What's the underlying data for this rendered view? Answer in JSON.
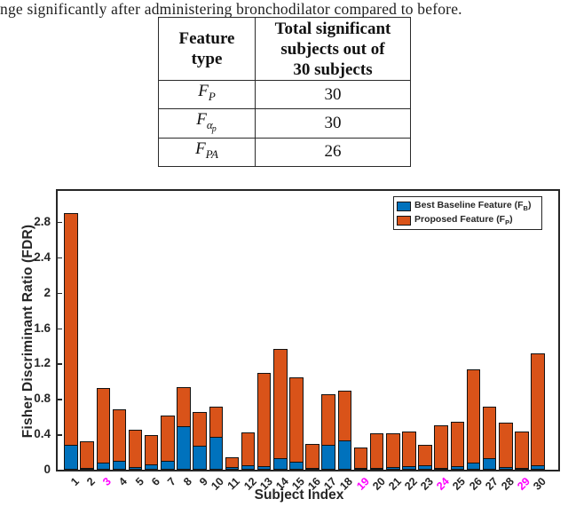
{
  "page": {
    "top_text": "nge significantly after administering bronchodilator compared to before."
  },
  "table": {
    "header_col1_lines": [
      "Feature",
      "type"
    ],
    "header_col2_lines": [
      "Total significant",
      "subjects out of",
      "30 subjects"
    ],
    "rows": [
      {
        "f": "F",
        "sub": "P",
        "subsub": "",
        "value": "30"
      },
      {
        "f": "F",
        "sub": "α",
        "subsub": "p",
        "value": "30"
      },
      {
        "f": "F",
        "sub": "PA",
        "subsub": "",
        "value": "26"
      }
    ]
  },
  "chart_data": {
    "type": "bar",
    "title": "",
    "xlabel": "Subject Index",
    "ylabel": "Fisher Discriminant Ratio (FDR)",
    "categories": [
      "1",
      "2",
      "3",
      "4",
      "5",
      "6",
      "7",
      "8",
      "9",
      "10",
      "11",
      "12",
      "13",
      "14",
      "15",
      "16",
      "17",
      "18",
      "19",
      "20",
      "21",
      "22",
      "23",
      "24",
      "25",
      "26",
      "27",
      "28",
      "29",
      "30"
    ],
    "highlighted_categories": [
      "3",
      "19",
      "24",
      "29"
    ],
    "highlight_color": "#FF00FF",
    "ylim": [
      0,
      3.15
    ],
    "yticks": [
      "0",
      "0.4",
      "0.8",
      "1.2",
      "1.6",
      "2",
      "2.4",
      "2.8"
    ],
    "grid": false,
    "legend_position": "top-right",
    "bar_style": "overlaid",
    "edge_color": "#121212",
    "series": [
      {
        "name": "Best Baseline Feature (F_B)",
        "label_prefix": "Best Baseline Feature (F",
        "label_sub": "B",
        "label_suffix": ")",
        "color": "#0072BD",
        "values": [
          0.28,
          0.02,
          0.08,
          0.1,
          0.03,
          0.06,
          0.1,
          0.49,
          0.27,
          0.37,
          0.03,
          0.05,
          0.04,
          0.13,
          0.09,
          0.02,
          0.28,
          0.33,
          0.02,
          0.02,
          0.03,
          0.04,
          0.05,
          0.02,
          0.04,
          0.08,
          0.13,
          0.03,
          0.02,
          0.05
        ]
      },
      {
        "name": "Proposed Feature (F_P)",
        "label_prefix": "Proposed Feature (F",
        "label_sub": "P",
        "label_suffix": ")",
        "color": "#D95319",
        "values": [
          2.9,
          0.32,
          0.92,
          0.68,
          0.45,
          0.39,
          0.61,
          0.93,
          0.65,
          0.71,
          0.14,
          0.42,
          1.09,
          1.36,
          1.04,
          0.29,
          0.85,
          0.89,
          0.25,
          0.41,
          0.41,
          0.43,
          0.28,
          0.5,
          0.54,
          1.13,
          0.71,
          0.53,
          0.43,
          1.31
        ]
      }
    ]
  }
}
